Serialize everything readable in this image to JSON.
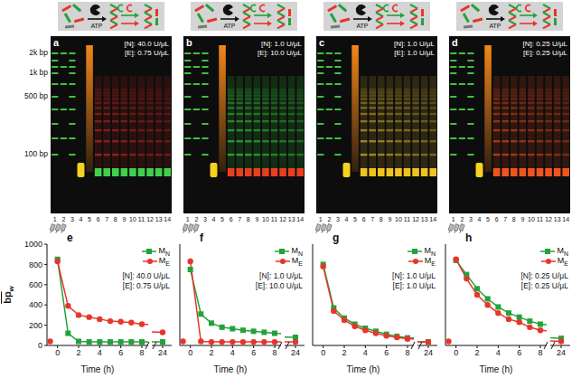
{
  "schematic_label": "ATP",
  "marker_labels": [
    "2k bp",
    "1k bp",
    "500 bp",
    "100 bp"
  ],
  "lanes": [
    1,
    2,
    3,
    4,
    5,
    6,
    7,
    8,
    9,
    10,
    11,
    12,
    13,
    14
  ],
  "gels": [
    {
      "letter": "a",
      "texts": [
        "[N]: 40.0 U/μL",
        "[E]: 0.75 U/μL"
      ],
      "colors": [
        "#b3261e",
        "#3fd14a"
      ]
    },
    {
      "letter": "b",
      "texts": [
        "[N]: 1.0 U/μL",
        "[E]: 10.0 U/μL"
      ],
      "colors": [
        "#34c43a",
        "#e8401c"
      ]
    },
    {
      "letter": "c",
      "texts": [
        "[N]: 1.0 U/μL",
        "[E]: 1.0 U/μL"
      ],
      "colors": [
        "#c9a82a",
        "#f2c21e"
      ]
    },
    {
      "letter": "d",
      "texts": [
        "[N]: 0.25 U/μL",
        "[E]: 0.25 U/μL"
      ],
      "colors": [
        "#d0461e",
        "#f2541e"
      ]
    }
  ],
  "chart_data": [
    {
      "type": "line",
      "letter": "e",
      "annotations": [
        "[N]: 40.0 U/μL",
        "[E]: 0.75 U/μL"
      ],
      "xlabel": "Time (h)",
      "ylabel": "bp",
      "ylabel_subscript": "w",
      "xlim": [
        -1,
        24.5
      ],
      "x_break": [
        8.6,
        23.4
      ],
      "xticks": [
        0,
        2,
        4,
        6,
        8,
        24
      ],
      "ylim": [
        0,
        1000
      ],
      "yticks": [
        0,
        200,
        400,
        600,
        800,
        1000
      ],
      "legend": "upper right",
      "x": [
        0,
        1,
        2,
        3,
        4,
        5,
        6,
        7,
        8,
        24
      ],
      "series": [
        {
          "name": "M",
          "subscript": "N",
          "color": "#22a33a",
          "marker": "square",
          "values": [
            850,
            120,
            40,
            35,
            35,
            35,
            35,
            35,
            35,
            35
          ]
        },
        {
          "name": "M",
          "subscript": "E",
          "color": "#e8352b",
          "marker": "circle",
          "values": [
            830,
            390,
            300,
            280,
            260,
            240,
            235,
            225,
            210,
            130
          ],
          "initial": {
            "x": -0.7,
            "value": 40
          }
        }
      ]
    },
    {
      "type": "line",
      "letter": "f",
      "annotations": [
        "[N]: 1.0 U/μL",
        "[E]: 10.0 U/μL"
      ],
      "xlabel": "Time (h)",
      "xlim": [
        -1,
        24.5
      ],
      "x_break": [
        8.6,
        23.4
      ],
      "xticks": [
        0,
        2,
        4,
        6,
        8,
        24
      ],
      "ylim": [
        0,
        1000
      ],
      "yticks": [
        0,
        200,
        400,
        600,
        800,
        1000
      ],
      "tick_labels": "x",
      "legend": "upper right",
      "x": [
        0,
        1,
        2,
        3,
        4,
        5,
        6,
        7,
        8,
        24
      ],
      "series": [
        {
          "name": "M",
          "subscript": "N",
          "color": "#22a33a",
          "marker": "square",
          "values": [
            750,
            310,
            220,
            180,
            165,
            150,
            140,
            130,
            120,
            80
          ]
        },
        {
          "name": "M",
          "subscript": "E",
          "color": "#e8352b",
          "marker": "circle",
          "values": [
            830,
            40,
            35,
            35,
            35,
            35,
            35,
            35,
            35,
            35
          ],
          "initial": {
            "x": -0.7,
            "value": 40
          }
        }
      ]
    },
    {
      "type": "line",
      "letter": "g",
      "annotations": [
        "[N]: 1.0 U/μL",
        "[E]: 1.0 U/μL"
      ],
      "xlabel": "Time (h)",
      "xlim": [
        -1,
        24.5
      ],
      "x_break": [
        8.6,
        23.4
      ],
      "xticks": [
        0,
        2,
        4,
        6,
        8,
        24
      ],
      "ylim": [
        0,
        1000
      ],
      "yticks": [
        0,
        200,
        400,
        600,
        800,
        1000
      ],
      "tick_labels": "x",
      "legend": "upper right",
      "x": [
        0,
        1,
        2,
        3,
        4,
        5,
        6,
        7,
        8,
        24
      ],
      "series": [
        {
          "name": "M",
          "subscript": "N",
          "color": "#22a33a",
          "marker": "square",
          "values": [
            800,
            370,
            270,
            210,
            170,
            140,
            110,
            90,
            75,
            35
          ]
        },
        {
          "name": "M",
          "subscript": "E",
          "color": "#e8352b",
          "marker": "circle",
          "values": [
            780,
            340,
            250,
            190,
            150,
            120,
            95,
            80,
            65,
            35
          ]
        }
      ]
    },
    {
      "type": "line",
      "letter": "h",
      "annotations": [
        "[N]: 0.25 U/μL",
        "[E]: 0.25 U/μL"
      ],
      "xlabel": "Time (h)",
      "xlim": [
        -1,
        24.5
      ],
      "x_break": [
        8.6,
        23.4
      ],
      "xticks": [
        0,
        2,
        4,
        6,
        8,
        24
      ],
      "ylim": [
        0,
        1000
      ],
      "yticks": [
        0,
        200,
        400,
        600,
        800,
        1000
      ],
      "tick_labels": "x",
      "legend": "upper right",
      "x": [
        0,
        1,
        2,
        3,
        4,
        5,
        6,
        7,
        8,
        24
      ],
      "series": [
        {
          "name": "M",
          "subscript": "N",
          "color": "#22a33a",
          "marker": "square",
          "values": [
            840,
            700,
            560,
            460,
            380,
            320,
            280,
            240,
            210,
            70
          ]
        },
        {
          "name": "M",
          "subscript": "E",
          "color": "#e8352b",
          "marker": "circle",
          "values": [
            850,
            660,
            500,
            400,
            320,
            260,
            230,
            180,
            150,
            40
          ],
          "initial": {
            "x": -0.7,
            "value": 40
          }
        }
      ]
    }
  ]
}
